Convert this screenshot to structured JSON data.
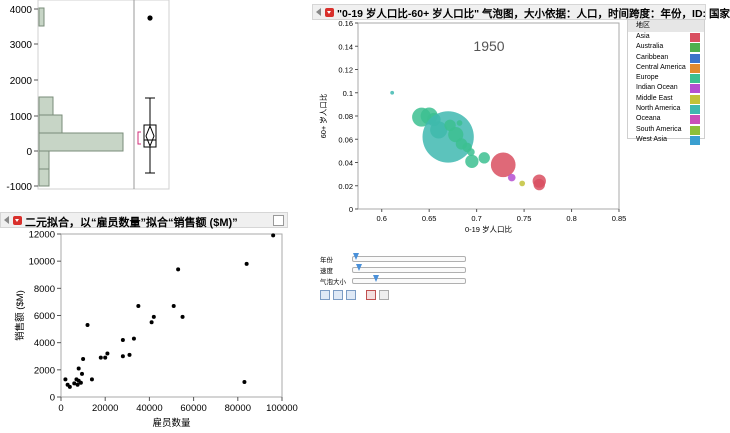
{
  "histogram": {
    "y_ticks": [
      "4000",
      "3000",
      "2000",
      "1000",
      "0",
      "-1000"
    ]
  },
  "bivariate": {
    "title": "二元拟合，以“雇员数量”拟合“销售额 ($M)”",
    "chart_data": {
      "type": "scatter",
      "xlabel": "雇员数量",
      "ylabel": "销售额 ($M)",
      "xlim": [
        0,
        100000
      ],
      "ylim": [
        0,
        12000
      ],
      "x_ticks": [
        "0",
        "20000",
        "40000",
        "60000",
        "80000",
        "100000"
      ],
      "y_ticks": [
        "0",
        "2000",
        "4000",
        "6000",
        "8000",
        "10000",
        "12000"
      ],
      "points": [
        [
          2000,
          1300
        ],
        [
          3000,
          900
        ],
        [
          4000,
          750
        ],
        [
          6000,
          1000
        ],
        [
          7000,
          1300
        ],
        [
          7500,
          900
        ],
        [
          8000,
          1200
        ],
        [
          8000,
          2100
        ],
        [
          9000,
          1050
        ],
        [
          9500,
          1700
        ],
        [
          10000,
          2800
        ],
        [
          12000,
          5300
        ],
        [
          14000,
          1300
        ],
        [
          18000,
          2900
        ],
        [
          20000,
          2900
        ],
        [
          21000,
          3200
        ],
        [
          28000,
          4200
        ],
        [
          28000,
          3000
        ],
        [
          31000,
          3100
        ],
        [
          33000,
          4300
        ],
        [
          35000,
          6700
        ],
        [
          41000,
          5500
        ],
        [
          42000,
          5900
        ],
        [
          51000,
          6700
        ],
        [
          53000,
          9400
        ],
        [
          55000,
          5900
        ],
        [
          83000,
          1100
        ],
        [
          84000,
          9800
        ],
        [
          96000,
          11900
        ]
      ]
    }
  },
  "bubble": {
    "title": "\"0-19 岁人口比-60+ 岁人口比\" 气泡图，大小依据：人口，时间跨度：年份，ID: 国家",
    "year_label": "1950",
    "chart_data": {
      "type": "scatter",
      "xlabel": "0-19 岁人口比",
      "ylabel": "60+ 岁人口比",
      "xlim": [
        0.575,
        0.85
      ],
      "ylim": [
        0,
        0.16
      ],
      "x_ticks": [
        "0.6",
        "0.65",
        "0.7",
        "0.75",
        "0.8",
        "0.85"
      ],
      "y_ticks": [
        "0",
        "0.02",
        "0.04",
        "0.06",
        "0.08",
        "0.1",
        "0.12",
        "0.14",
        "0.16"
      ],
      "bubbles": [
        {
          "x": 0.611,
          "y": 0.1,
          "size": 2,
          "region": "North America"
        },
        {
          "x": 0.642,
          "y": 0.079,
          "size": 10,
          "region": "Europe"
        },
        {
          "x": 0.65,
          "y": 0.08,
          "size": 9,
          "region": "Europe"
        },
        {
          "x": 0.655,
          "y": 0.077,
          "size": 7,
          "region": "Europe"
        },
        {
          "x": 0.66,
          "y": 0.068,
          "size": 9,
          "region": "Europe"
        },
        {
          "x": 0.67,
          "y": 0.062,
          "size": 27,
          "region": "North America"
        },
        {
          "x": 0.672,
          "y": 0.072,
          "size": 6,
          "region": "Europe"
        },
        {
          "x": 0.678,
          "y": 0.064,
          "size": 8,
          "region": "Europe"
        },
        {
          "x": 0.684,
          "y": 0.056,
          "size": 6,
          "region": "Europe"
        },
        {
          "x": 0.682,
          "y": 0.074,
          "size": 3,
          "region": "Europe"
        },
        {
          "x": 0.69,
          "y": 0.053,
          "size": 5,
          "region": "Europe"
        },
        {
          "x": 0.694,
          "y": 0.049,
          "size": 4,
          "region": "Europe"
        },
        {
          "x": 0.695,
          "y": 0.041,
          "size": 7,
          "region": "Europe"
        },
        {
          "x": 0.708,
          "y": 0.044,
          "size": 6,
          "region": "Europe"
        },
        {
          "x": 0.728,
          "y": 0.038,
          "size": 13,
          "region": "Asia"
        },
        {
          "x": 0.737,
          "y": 0.027,
          "size": 4,
          "region": "Indian Ocean"
        },
        {
          "x": 0.748,
          "y": 0.022,
          "size": 3,
          "region": "Middle East"
        },
        {
          "x": 0.766,
          "y": 0.024,
          "size": 7,
          "region": "Asia"
        },
        {
          "x": 0.766,
          "y": 0.021,
          "size": 6,
          "region": "Asia"
        }
      ]
    },
    "legend_title": "地区",
    "legend": [
      {
        "name": "Asia",
        "color": "#d94f60"
      },
      {
        "name": "Australia",
        "color": "#4eb04e"
      },
      {
        "name": "Caribbean",
        "color": "#3b74c9"
      },
      {
        "name": "Central America",
        "color": "#e08a2e"
      },
      {
        "name": "Europe",
        "color": "#3cbf90"
      },
      {
        "name": "Indian Ocean",
        "color": "#b44fd0"
      },
      {
        "name": "Middle East",
        "color": "#c2c23a"
      },
      {
        "name": "North America",
        "color": "#3fb8b0"
      },
      {
        "name": "Oceana",
        "color": "#c94fb8"
      },
      {
        "name": "South America",
        "color": "#8dbf3a"
      },
      {
        "name": "West Asia",
        "color": "#3a9fd0"
      }
    ],
    "controls": {
      "year": "年份",
      "speed": "速度",
      "bubble_size": "气泡大小"
    }
  }
}
